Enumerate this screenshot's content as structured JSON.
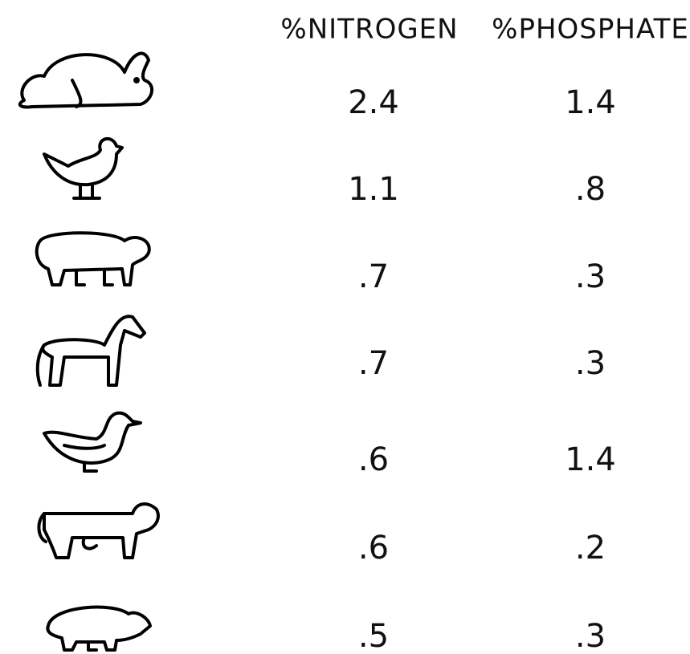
{
  "table": {
    "headers": [
      "%NITROGEN",
      "%PHOSPHATE"
    ],
    "rows": [
      [
        "2.4",
        "1.4"
      ],
      [
        "1.1",
        ".8"
      ],
      [
        ".7",
        ".3"
      ],
      [
        ".7",
        ".3"
      ],
      [
        ".6",
        "1.4"
      ],
      [
        ".6",
        ".2"
      ],
      [
        ".5",
        ".3"
      ]
    ]
  }
}
